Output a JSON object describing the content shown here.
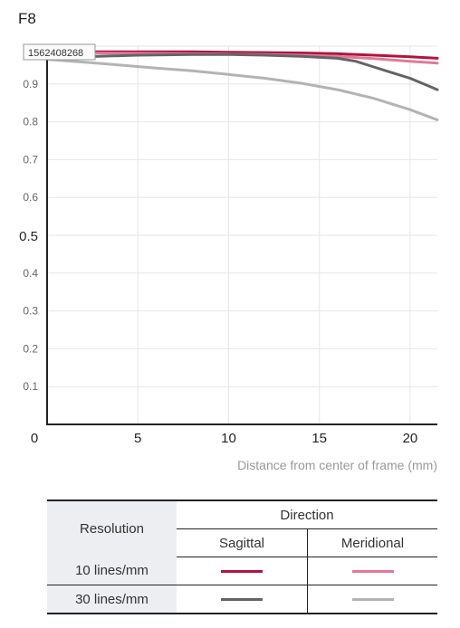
{
  "chart_data": {
    "type": "line",
    "title": "F8",
    "xlabel": "Distance from center of frame (mm)",
    "ylabel": "",
    "xlim": [
      0,
      21.5
    ],
    "ylim": [
      0,
      1.0
    ],
    "x_ticks": [
      0,
      5,
      10,
      15,
      20
    ],
    "x_tick_labels": [
      "0",
      "5",
      "10",
      "15",
      "20"
    ],
    "y_ticks": [
      0.1,
      0.2,
      0.3,
      0.4,
      0.5,
      0.6,
      0.7,
      0.8,
      0.9
    ],
    "y_tick_labels": [
      "0.1",
      "0.2",
      "0.3",
      "0.4",
      "0.5",
      "0.6",
      "0.7",
      "0.8",
      "0.9"
    ],
    "grid": true,
    "overlay_label": "1562408268",
    "series": [
      {
        "color": "#b0143f",
        "x": [
          0,
          2,
          5,
          8,
          10,
          12,
          14,
          16,
          18,
          20,
          21.5
        ],
        "y": [
          0.985,
          0.985,
          0.985,
          0.985,
          0.984,
          0.983,
          0.982,
          0.98,
          0.976,
          0.972,
          0.968
        ]
      },
      {
        "color": "#e07a97",
        "x": [
          0,
          2,
          5,
          8,
          10,
          12,
          14,
          16,
          18,
          20,
          21.5
        ],
        "y": [
          0.982,
          0.982,
          0.981,
          0.98,
          0.979,
          0.978,
          0.976,
          0.973,
          0.967,
          0.96,
          0.955
        ]
      },
      {
        "color": "#636466",
        "x": [
          0,
          2,
          5,
          8,
          10,
          12,
          14,
          16,
          17,
          18,
          19,
          20,
          21,
          21.5
        ],
        "y": [
          0.97,
          0.972,
          0.976,
          0.978,
          0.978,
          0.976,
          0.973,
          0.968,
          0.96,
          0.945,
          0.93,
          0.915,
          0.895,
          0.885
        ]
      },
      {
        "color": "#b2b3b5",
        "x": [
          0,
          2,
          4,
          6,
          8,
          10,
          12,
          14,
          16,
          18,
          20,
          21.5
        ],
        "y": [
          0.965,
          0.958,
          0.95,
          0.942,
          0.935,
          0.925,
          0.915,
          0.902,
          0.885,
          0.862,
          0.832,
          0.805
        ]
      }
    ]
  },
  "legend": {
    "resolution_header": "Resolution",
    "direction_header": "Direction",
    "sagittal": "Sagittal",
    "meridional": "Meridional",
    "rows": [
      {
        "label": "10 lines/mm",
        "sagittal_color": "#b0143f",
        "meridional_color": "#e07a97"
      },
      {
        "label": "30 lines/mm",
        "sagittal_color": "#636466",
        "meridional_color": "#b2b3b5"
      }
    ]
  }
}
